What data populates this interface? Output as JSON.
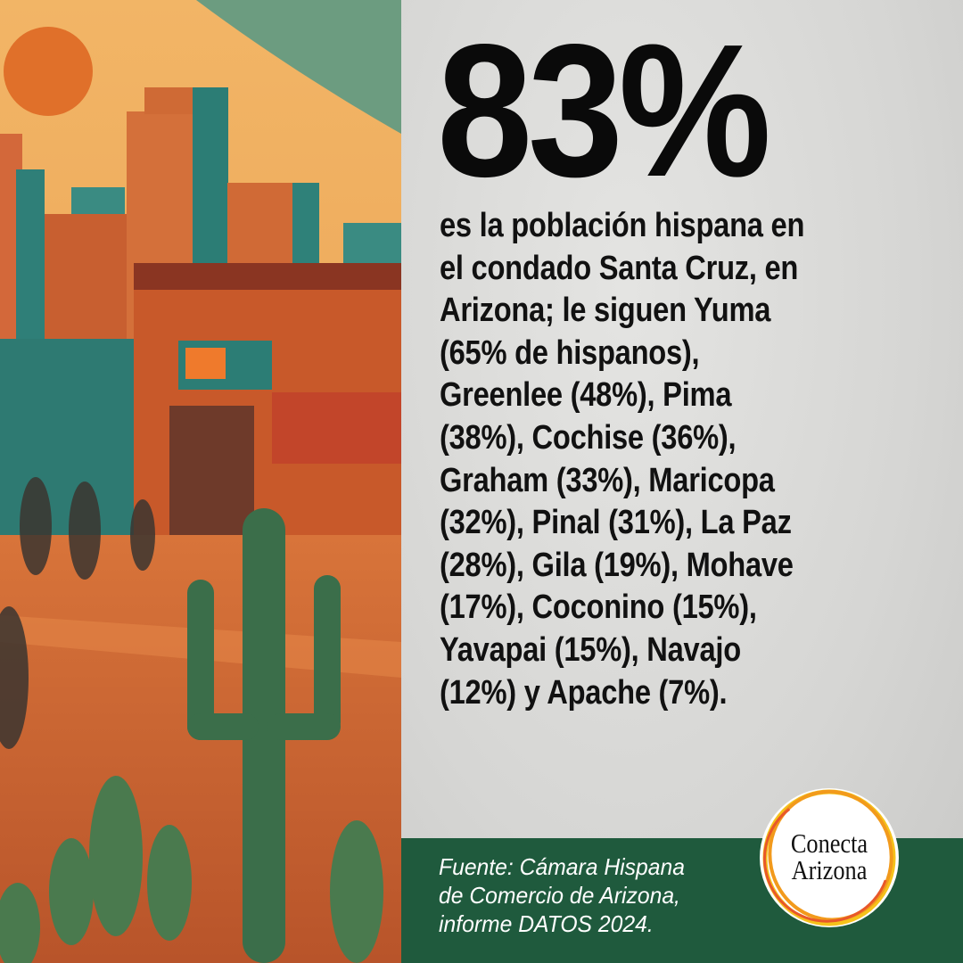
{
  "headline": "83%",
  "body_lines": [
    "es la población hispana en",
    "el condado Santa Cruz, en",
    "Arizona; le siguen Yuma",
    "(65% de hispanos),",
    "Greenlee (48%), Pima",
    "(38%), Cochise (36%),",
    "Graham (33%), Maricopa",
    "(32%), Pinal (31%), La Paz",
    "(28%), Gila (19%), Mohave",
    "(17%), Coconino (15%),",
    "Yavapai (15%), Navajo",
    "(12%) y Apache (7%)."
  ],
  "source_lines": [
    "Fuente: Cámara Hispana",
    "de Comercio de Arizona,",
    "informe DATOS 2024."
  ],
  "logo": {
    "line1": "Conecta",
    "line2": "Arizona"
  },
  "colors": {
    "band": "#1f5a3d",
    "text": "#111111",
    "orange": "#d9662a",
    "teal": "#2f8a80"
  }
}
